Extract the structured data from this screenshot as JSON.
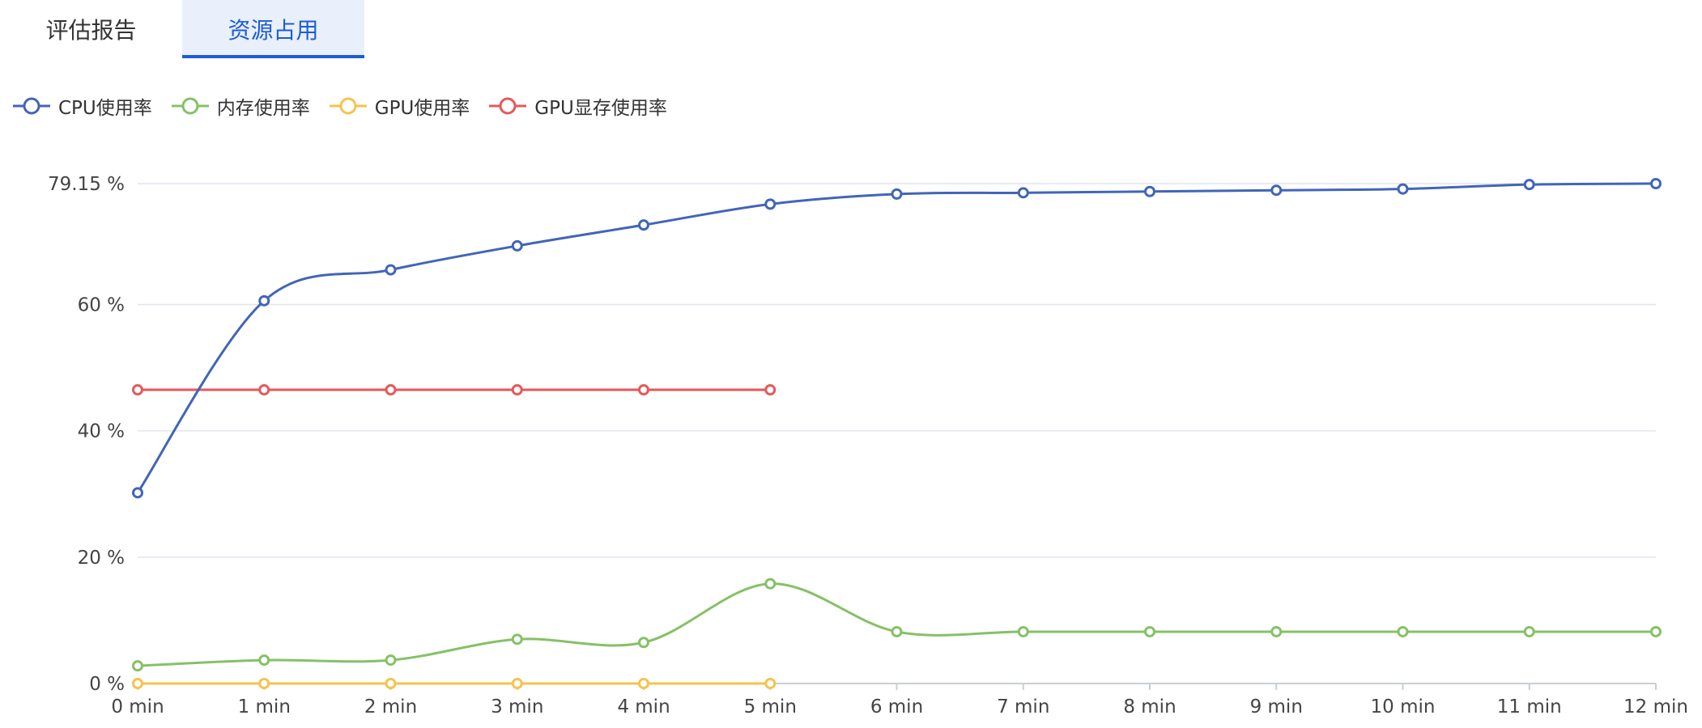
{
  "tabs": [
    {
      "label": "评估报告",
      "active": false
    },
    {
      "label": "资源占用",
      "active": true
    }
  ],
  "colors": {
    "accent": "#1d5bd8",
    "tab_active_bg": "#e9f0fb",
    "grid": "#e0e4ef",
    "axis": "#c9cdd6"
  },
  "chart_data": {
    "type": "line",
    "smooth": true,
    "legend_position": "top-left",
    "grid": true,
    "x": [
      "0 min",
      "1 min",
      "2 min",
      "3 min",
      "4 min",
      "5 min",
      "6 min",
      "7 min",
      "8 min",
      "9 min",
      "10 min",
      "11 min",
      "12 min"
    ],
    "y_ticks": [
      {
        "label": "0 %",
        "value": 0
      },
      {
        "label": "20 %",
        "value": 20
      },
      {
        "label": "40 %",
        "value": 40
      },
      {
        "label": "60 %",
        "value": 60
      },
      {
        "label": "79.15 %",
        "value": 79.15
      }
    ],
    "ylim": [
      0,
      79.15
    ],
    "series": [
      {
        "name": "CPU使用率",
        "color": "#4165b8",
        "values": [
          30.2,
          60.6,
          65.5,
          69.3,
          72.6,
          75.9,
          77.5,
          77.7,
          77.9,
          78.1,
          78.3,
          79.0,
          79.15
        ]
      },
      {
        "name": "内存使用率",
        "color": "#85c166",
        "values": [
          2.8,
          3.7,
          3.7,
          7.0,
          6.5,
          15.8,
          8.2,
          8.2,
          8.2,
          8.2,
          8.2,
          8.2,
          8.2
        ]
      },
      {
        "name": "GPU使用率",
        "color": "#f5c34d",
        "values": [
          0,
          0,
          0,
          0,
          0,
          0,
          null,
          null,
          null,
          null,
          null,
          null,
          null
        ]
      },
      {
        "name": "GPU显存使用率",
        "color": "#e65858",
        "values": [
          46.5,
          46.5,
          46.5,
          46.5,
          46.5,
          46.5,
          null,
          null,
          null,
          null,
          null,
          null,
          null
        ]
      }
    ]
  }
}
